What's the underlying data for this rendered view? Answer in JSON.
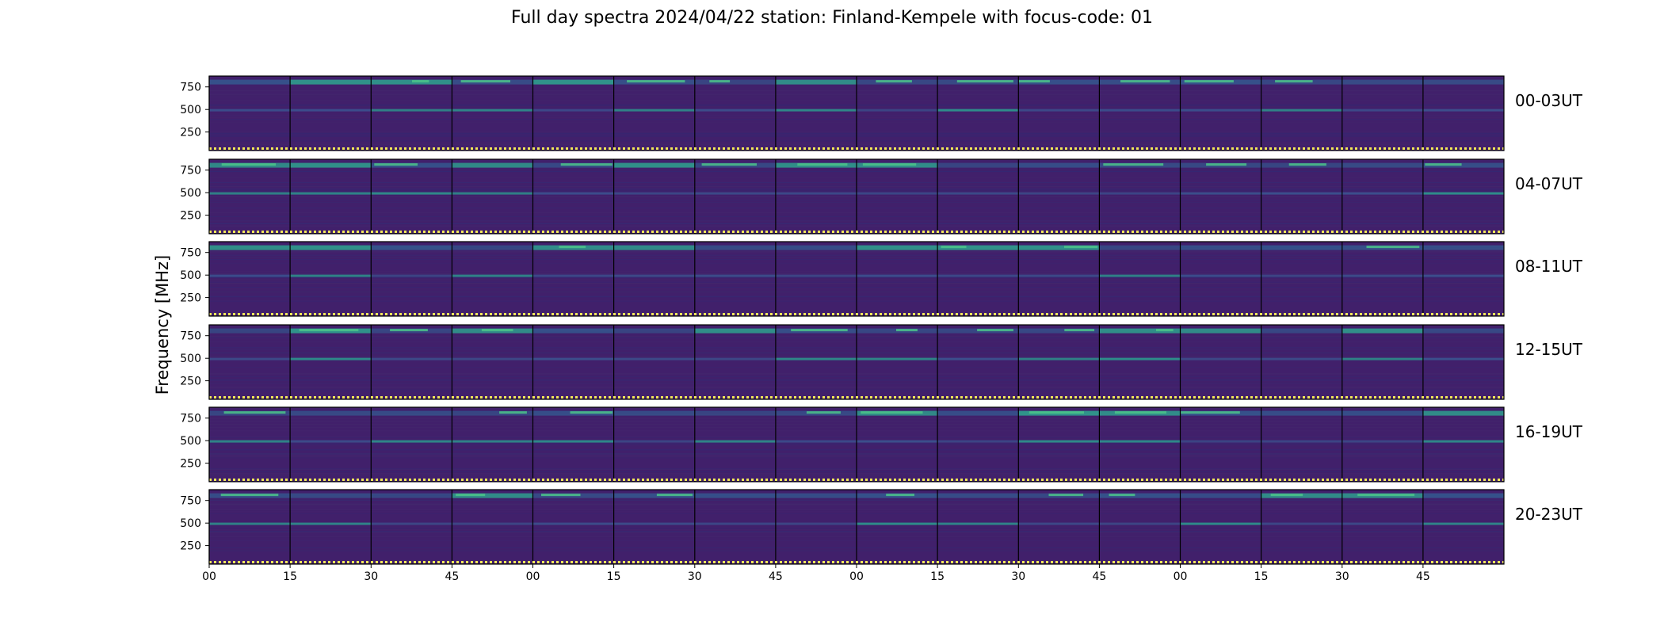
{
  "chart_data": {
    "type": "heatmap",
    "title": "Full day spectra 2024/04/22 station: Finland-Kempele with focus-code: 01",
    "ylabel": "Frequency [MHz]",
    "xlabel": "",
    "colormap": "viridis",
    "row_labels": [
      "00-03UT",
      "04-07UT",
      "08-11UT",
      "12-15UT",
      "16-19UT",
      "20-23UT"
    ],
    "y_ticks": [
      250,
      500,
      750
    ],
    "ylim": [
      45,
      870
    ],
    "x_ticks": [
      "00",
      "15",
      "30",
      "45",
      "00",
      "15",
      "30",
      "45",
      "00",
      "15",
      "30",
      "45",
      "00",
      "15",
      "30",
      "45"
    ],
    "segments_per_row": 16,
    "segment_minutes": 15,
    "emission_bands_mhz": [
      45,
      500,
      800
    ]
  }
}
